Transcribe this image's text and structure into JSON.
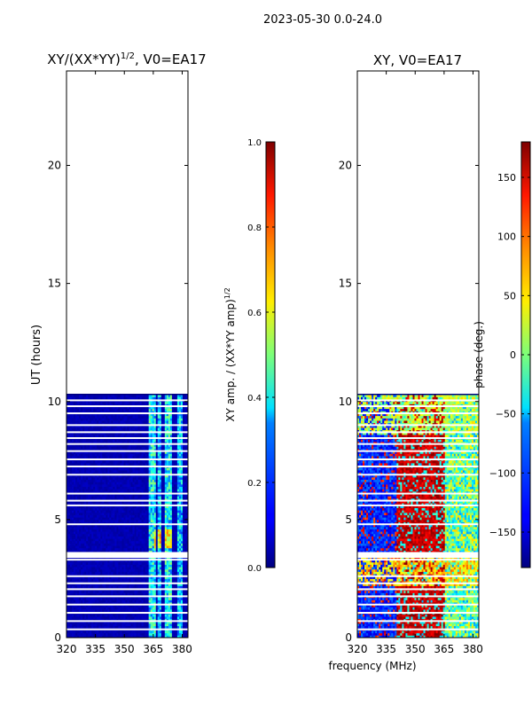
{
  "figure": {
    "suptitle": "2023-05-30 0.0-24.0",
    "shared_xlabel": "frequency (MHz)"
  },
  "chart_data": [
    {
      "type": "heatmap",
      "title": "XY/(XX*YY)^(1/2), V0=EA17",
      "title_main": "XY/(XX*YY)",
      "title_exp": "1/2",
      "title_tail": ", V0=EA17",
      "xlabel": "frequency (MHz)",
      "ylabel": "UT (hours)",
      "xlim": [
        320,
        383
      ],
      "ylim": [
        0,
        24
      ],
      "xticks": [
        320,
        335,
        350,
        365,
        380
      ],
      "yticks": [
        0,
        5,
        10,
        15,
        20
      ],
      "data_time_range_hours": [
        0,
        10.3
      ],
      "colormap": "jet",
      "colorbar": {
        "label": "XY amp. / (XX*YY amp)^(1/2)",
        "label_main": "XY amp. / (XX*YY amp)",
        "label_exp": "1/2",
        "range": [
          0.0,
          1.0
        ],
        "ticks": [
          0.0,
          0.2,
          0.4,
          0.6,
          0.8,
          1.0
        ],
        "tick_labels": [
          "0.0",
          "0.2",
          "0.4",
          "0.6",
          "0.8",
          "1.0"
        ]
      },
      "features": [
        {
          "freq_range_mhz": [
            320,
            362
          ],
          "value": 0.02,
          "note": "low amplitude background"
        },
        {
          "freq_range_mhz": [
            363,
            366
          ],
          "value": 0.35,
          "note": "elevated amplitude band"
        },
        {
          "freq_range_mhz": [
            367,
            369
          ],
          "value": 0.3,
          "note": "elevated amplitude band"
        },
        {
          "freq_range_mhz": [
            371,
            375
          ],
          "value": 0.35,
          "note": "elevated amplitude band"
        },
        {
          "freq_range_mhz": [
            377,
            380
          ],
          "value": 0.3,
          "note": "elevated amplitude band"
        },
        {
          "time_range_hours": [
            3.8,
            4.6
          ],
          "freq_range_mhz": [
            365,
            375
          ],
          "value": 0.7,
          "note": "peak amplitude"
        }
      ]
    },
    {
      "type": "heatmap",
      "title": "XY, V0=EA17",
      "xlabel": "frequency (MHz)",
      "ylabel": "",
      "xlim": [
        320,
        383
      ],
      "ylim": [
        0,
        24
      ],
      "xticks": [
        320,
        335,
        350,
        365,
        380
      ],
      "yticks": [
        0,
        5,
        10,
        15,
        20
      ],
      "data_time_range_hours": [
        0,
        10.3
      ],
      "colormap": "jet",
      "colorbar": {
        "label": "phase (deg.)",
        "range": [
          -180,
          180
        ],
        "ticks": [
          150,
          100,
          50,
          0,
          -50,
          -100,
          -150
        ],
        "tick_labels": [
          "150",
          "100",
          "50",
          "0",
          "−50",
          "−100",
          "−150"
        ]
      },
      "features": [
        {
          "freq_range_mhz": [
            320,
            340
          ],
          "value": -150,
          "note": "mostly dark blue phase"
        },
        {
          "freq_range_mhz": [
            340,
            365
          ],
          "value": 150,
          "note": "mostly red phase"
        },
        {
          "freq_range_mhz": [
            365,
            383
          ],
          "value": -50,
          "note": "mixed cyan/blue phase"
        },
        {
          "time_range_hours": [
            2.2,
            3.5
          ],
          "freq_range_mhz": [
            320,
            383
          ],
          "value": 60,
          "note": "yellow band"
        },
        {
          "time_range_hours": [
            8.6,
            10.3
          ],
          "freq_range_mhz": [
            320,
            383
          ],
          "value": 20,
          "note": "mixed green/yellow top band"
        }
      ]
    }
  ]
}
